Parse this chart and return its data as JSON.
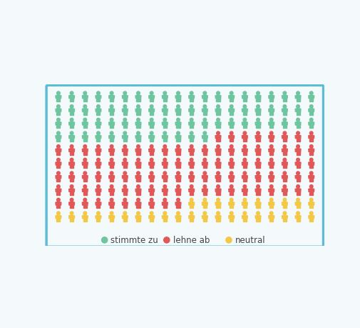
{
  "cols": 20,
  "rows": 10,
  "counts": {
    "green": 72,
    "red": 98,
    "yellow": 30
  },
  "colors": {
    "green": "#6ec5a0",
    "red": "#e05858",
    "yellow": "#f2c846"
  },
  "bg_color": "#f4fafc",
  "border_color": "#5bbdd6",
  "legend": [
    {
      "label": "stimmte zu",
      "color": "#6ec5a0"
    },
    {
      "label": "lehne ab",
      "color": "#e05858"
    },
    {
      "label": "neutral",
      "color": "#f2c846"
    }
  ]
}
